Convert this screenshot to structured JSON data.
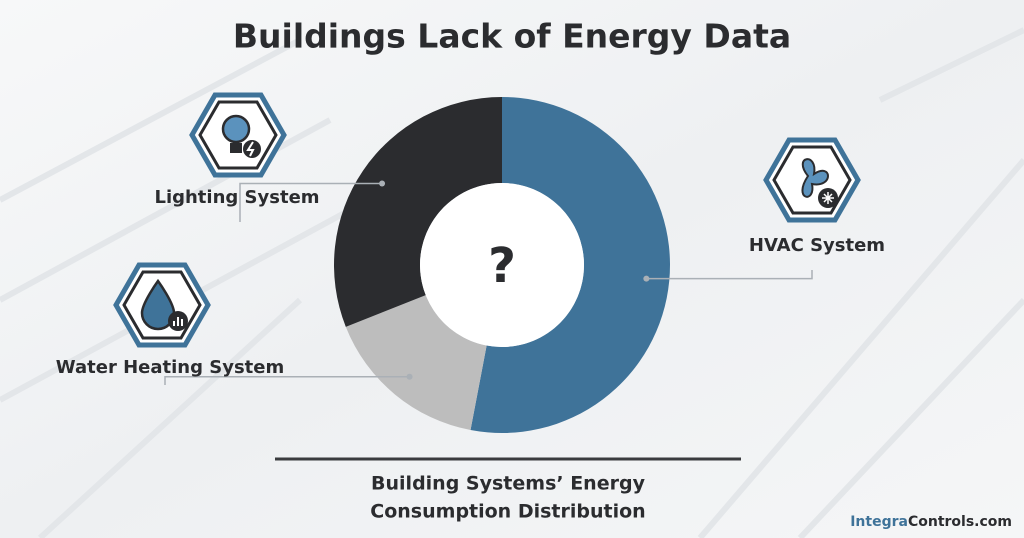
{
  "chart_data": {
    "type": "donut",
    "title": "Buildings Lack of Energy Data",
    "center_label": "?",
    "categories": [
      "HVAC System",
      "Water Heating System",
      "Lighting System"
    ],
    "values": [
      53,
      16,
      31
    ],
    "colors": [
      "#3f7399",
      "#bdbdbd",
      "#2b2c2f"
    ],
    "caption": [
      "Building Systems’ Energy",
      "Consumption Distribution"
    ]
  },
  "footer": {
    "brand": "Integra",
    "domain": "Controls.com"
  }
}
